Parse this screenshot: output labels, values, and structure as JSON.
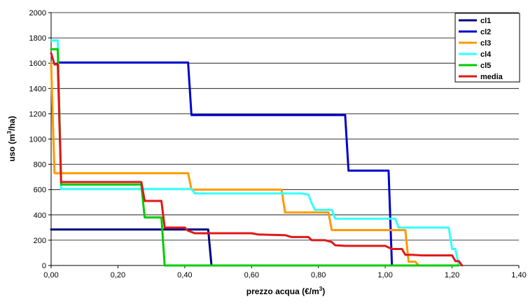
{
  "chart_data": {
    "type": "line",
    "xlabel": "prezzo acqua (€/m",
    "xlabel_sup": "3",
    "xlabel_end": ")",
    "ylabel": "uso (m",
    "ylabel_sup": "3",
    "ylabel_end": "/ha)",
    "xlim": [
      0,
      1.4
    ],
    "ylim": [
      0,
      2000
    ],
    "x_ticks": [
      0,
      0.2,
      0.4,
      0.6,
      0.8,
      1.0,
      1.2,
      1.4
    ],
    "x_tick_labels": [
      "0,00",
      "0,20",
      "0,40",
      "0,60",
      "0,80",
      "1,00",
      "1,20",
      "1,40"
    ],
    "y_ticks": [
      0,
      200,
      400,
      600,
      800,
      1000,
      1200,
      1400,
      1600,
      1800,
      2000
    ],
    "y_tick_labels": [
      "0",
      "200",
      "400",
      "600",
      "800",
      "1000",
      "1200",
      "1400",
      "1600",
      "1800",
      "2000"
    ],
    "grid": "horizontal",
    "legend_position": "top-right",
    "series": [
      {
        "name": "cl1",
        "color": "#000080",
        "points": [
          [
            0,
            285
          ],
          [
            0.47,
            285
          ],
          [
            0.48,
            0
          ],
          [
            1.22,
            0
          ]
        ]
      },
      {
        "name": "cl2",
        "color": "#0000CC",
        "points": [
          [
            0.02,
            1605
          ],
          [
            0.41,
            1605
          ],
          [
            0.42,
            1190
          ],
          [
            0.88,
            1190
          ],
          [
            0.89,
            750
          ],
          [
            1.01,
            750
          ],
          [
            1.02,
            0
          ],
          [
            1.22,
            0
          ]
        ]
      },
      {
        "name": "cl3",
        "color": "#FF9900",
        "points": [
          [
            0,
            1600
          ],
          [
            0.01,
            730
          ],
          [
            0.41,
            730
          ],
          [
            0.42,
            600
          ],
          [
            0.69,
            600
          ],
          [
            0.7,
            420
          ],
          [
            0.83,
            420
          ],
          [
            0.84,
            280
          ],
          [
            1.06,
            280
          ],
          [
            1.07,
            30
          ],
          [
            1.09,
            30
          ],
          [
            1.1,
            0
          ],
          [
            1.22,
            0
          ]
        ]
      },
      {
        "name": "cl4",
        "color": "#33FFFF",
        "points": [
          [
            0,
            1780
          ],
          [
            0.02,
            1780
          ],
          [
            0.03,
            605
          ],
          [
            0.42,
            605
          ],
          [
            0.43,
            570
          ],
          [
            0.75,
            570
          ],
          [
            0.77,
            560
          ],
          [
            0.78,
            490
          ],
          [
            0.79,
            440
          ],
          [
            0.84,
            440
          ],
          [
            0.85,
            370
          ],
          [
            1.03,
            370
          ],
          [
            1.04,
            300
          ],
          [
            1.19,
            300
          ],
          [
            1.2,
            130
          ],
          [
            1.21,
            130
          ],
          [
            1.22,
            0
          ]
        ]
      },
      {
        "name": "cl5",
        "color": "#00CC00",
        "points": [
          [
            0,
            1710
          ],
          [
            0.02,
            1710
          ],
          [
            0.03,
            640
          ],
          [
            0.27,
            640
          ],
          [
            0.28,
            380
          ],
          [
            0.33,
            380
          ],
          [
            0.34,
            0
          ],
          [
            1.22,
            0
          ]
        ]
      },
      {
        "name": "media",
        "color": "#E01818",
        "points": [
          [
            0,
            1680
          ],
          [
            0.01,
            1590
          ],
          [
            0.02,
            1590
          ],
          [
            0.03,
            660
          ],
          [
            0.27,
            660
          ],
          [
            0.28,
            510
          ],
          [
            0.33,
            510
          ],
          [
            0.34,
            300
          ],
          [
            0.4,
            300
          ],
          [
            0.41,
            275
          ],
          [
            0.43,
            255
          ],
          [
            0.6,
            255
          ],
          [
            0.62,
            245
          ],
          [
            0.7,
            240
          ],
          [
            0.72,
            225
          ],
          [
            0.77,
            225
          ],
          [
            0.78,
            200
          ],
          [
            0.82,
            200
          ],
          [
            0.84,
            185
          ],
          [
            0.85,
            160
          ],
          [
            0.88,
            155
          ],
          [
            1.0,
            155
          ],
          [
            1.02,
            130
          ],
          [
            1.05,
            130
          ],
          [
            1.06,
            85
          ],
          [
            1.08,
            85
          ],
          [
            1.11,
            80
          ],
          [
            1.2,
            80
          ],
          [
            1.21,
            35
          ],
          [
            1.22,
            35
          ],
          [
            1.23,
            0
          ]
        ]
      }
    ]
  }
}
